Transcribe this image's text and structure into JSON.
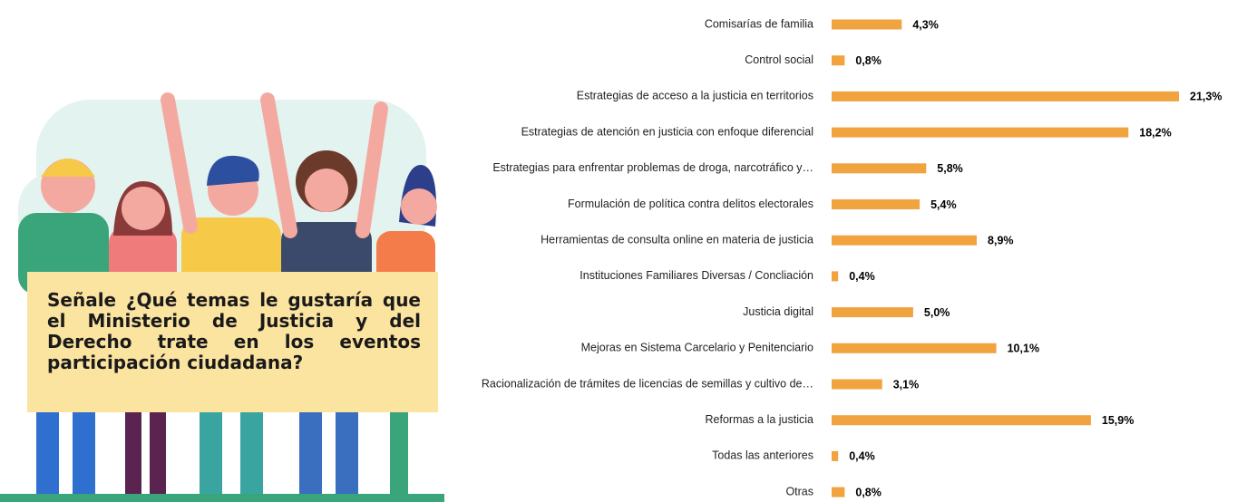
{
  "chart_data": {
    "type": "bar",
    "orientation": "horizontal",
    "title": "Señale ¿Qué temas le gustaría que el Ministerio de Justicia y del Derecho trate en los eventos participación ciudadana?",
    "categories": [
      "Comisarías de familia",
      "Control social",
      "Estrategias de acceso a la justicia en territorios",
      "Estrategias de atención en justicia con enfoque diferencial",
      "Estrategias para enfrentar problemas de droga, narcotráfico y…",
      "Formulación de política contra delitos electorales",
      "Herramientas de consulta online en materia de justicia",
      "Instituciones Familiares Diversas / Concliación",
      "Justicia digital",
      "Mejoras en Sistema Carcelario y Penitenciario",
      "Racionalización de trámites de licencias de semillas y cultivo de…",
      "Reformas a la justicia",
      "Todas las anteriores",
      "Otras"
    ],
    "values": [
      4.3,
      0.8,
      21.3,
      18.2,
      5.8,
      5.4,
      8.9,
      0.4,
      5.0,
      10.1,
      3.1,
      15.9,
      0.4,
      0.8
    ],
    "value_labels": [
      "4,3%",
      "0,8%",
      "21,3%",
      "18,2%",
      "5,8%",
      "5,4%",
      "8,9%",
      "0,4%",
      "5,0%",
      "10,1%",
      "3,1%",
      "15,9%",
      "0,4%",
      "0,8%"
    ],
    "color": "#f0a33e"
  }
}
